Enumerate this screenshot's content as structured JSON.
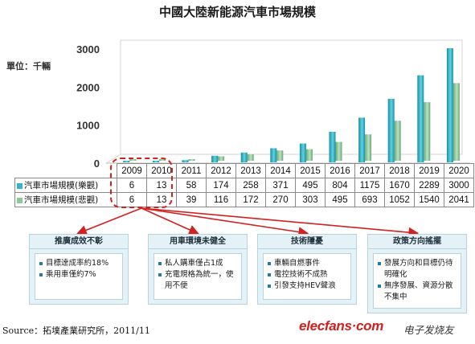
{
  "title": "中國大陸新能源汽車市場規模",
  "unit_label": "單位：千輛",
  "colors": {
    "optimistic": "#2fb6cc",
    "pessimistic": "#8cc99a",
    "highlight": "#d32020"
  },
  "chart_data": {
    "type": "bar",
    "title": "中國大陸新能源汽車市場規模",
    "ylabel": "單位：千輛",
    "ylim": [
      0,
      3000
    ],
    "yticks": [
      0,
      1000,
      2000,
      3000
    ],
    "grid": false,
    "categories": [
      "2009",
      "2010",
      "2011",
      "2012",
      "2013",
      "2014",
      "2015",
      "2016",
      "2017",
      "2018",
      "2019",
      "2020"
    ],
    "series": [
      {
        "name": "汽車市場規模(樂觀)",
        "values": [
          6,
          13,
          58,
          174,
          258,
          371,
          495,
          804,
          1175,
          1670,
          2289,
          3000
        ]
      },
      {
        "name": "汽車市場規模(悲觀)",
        "values": [
          6,
          13,
          39,
          116,
          172,
          270,
          303,
          495,
          693,
          1052,
          1540,
          2041
        ]
      }
    ]
  },
  "table": {
    "years": [
      "2009",
      "2010",
      "2011",
      "2012",
      "2013",
      "2014",
      "2015",
      "2016",
      "2017",
      "2018",
      "2019",
      "2020"
    ],
    "rows": [
      {
        "label": "汽車市場規模(樂觀)",
        "values": [
          "6",
          "13",
          "58",
          "174",
          "258",
          "371",
          "495",
          "804",
          "1175",
          "1670",
          "2289",
          "3000"
        ]
      },
      {
        "label": "汽車市場規模(悲觀)",
        "values": [
          "6",
          "13",
          "39",
          "116",
          "172",
          "270",
          "303",
          "495",
          "693",
          "1052",
          "1540",
          "2041"
        ]
      }
    ]
  },
  "reasons": [
    {
      "title": "推廣成效不彰",
      "items": [
        "目標達成率約18%",
        "乘用車僅約7%"
      ]
    },
    {
      "title": "用車環境未健全",
      "items": [
        "私人購車僅占1成",
        "充電規格為統一，使用不便"
      ]
    },
    {
      "title": "技術隱憂",
      "items": [
        "車輛自燃事件",
        "電控技術不成熟",
        "引發支持HEV聲浪"
      ]
    },
    {
      "title": "政策方向搖擺",
      "items": [
        "發展方向和目標仍待明確化",
        "無序發展、資源分散不集中"
      ]
    }
  ],
  "source": "Source：拓墣產業研究所，2011/11",
  "brand": "elecfans·com",
  "brand_cn": "电子发烧友"
}
